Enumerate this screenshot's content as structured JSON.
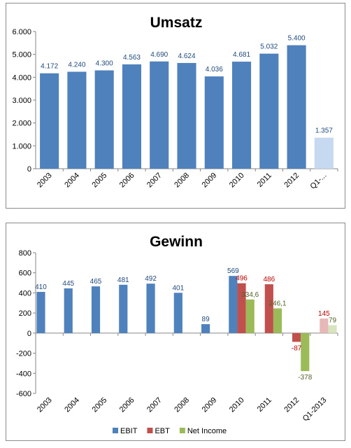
{
  "chart_data": [
    {
      "type": "bar",
      "title": "Umsatz",
      "categories": [
        "2003",
        "2004",
        "2005",
        "2006",
        "2007",
        "2008",
        "2009",
        "2010",
        "2011",
        "2012",
        "Q1-..."
      ],
      "values": [
        4172,
        4240,
        4300,
        4563,
        4690,
        4624,
        4036,
        4681,
        5032,
        5400,
        1357
      ],
      "value_labels": [
        "4.172",
        "4.240",
        "4.300",
        "4.563",
        "4.690",
        "4.624",
        "4.036",
        "4.681",
        "5.032",
        "5.400",
        "1.357"
      ],
      "ylim": [
        0,
        6000
      ],
      "yticks": [
        0,
        1000,
        2000,
        3000,
        4000,
        5000,
        6000
      ],
      "ytick_labels": [
        "0",
        "1.000",
        "2.000",
        "3.000",
        "4.000",
        "5.000",
        "6.000"
      ],
      "bar_color": "#4F81BD",
      "highlight_color": "#C6D9F1",
      "highlight_index": 10,
      "gridlines": false
    },
    {
      "type": "bar",
      "title": "Gewinn",
      "categories": [
        "2003",
        "2004",
        "2005",
        "2006",
        "2007",
        "2008",
        "2009",
        "2010",
        "2011",
        "2012",
        "Q1-2013"
      ],
      "ylim": [
        -600,
        800
      ],
      "yticks": [
        -600,
        -400,
        -200,
        0,
        200,
        400,
        600,
        800
      ],
      "ytick_labels": [
        "-600",
        "-400",
        "-200",
        "0",
        "200",
        "400",
        "600",
        "800"
      ],
      "series": [
        {
          "name": "EBIT",
          "color": "#4F81BD",
          "light_color": "#4F81BD",
          "values": [
            410,
            445,
            465,
            481,
            492,
            401,
            89,
            569,
            null,
            null,
            null
          ],
          "value_labels": [
            "410",
            "445",
            "465",
            "481",
            "492",
            "401",
            "89",
            "569",
            "",
            "",
            ""
          ]
        },
        {
          "name": "EBT",
          "color": "#C0504D",
          "light_color": "#E6B9B8",
          "values": [
            null,
            null,
            null,
            null,
            null,
            null,
            null,
            496,
            486,
            -87,
            145
          ],
          "value_labels": [
            "",
            "",
            "",
            "",
            "",
            "",
            "",
            "496",
            "486",
            "-87",
            "145"
          ]
        },
        {
          "name": "Net Income",
          "color": "#9BBB59",
          "light_color": "#D7E4BD",
          "values": [
            null,
            null,
            null,
            null,
            null,
            null,
            null,
            334.6,
            246.1,
            -378,
            79
          ],
          "value_labels": [
            "",
            "",
            "",
            "",
            "",
            "",
            "",
            "334,6",
            "246,1",
            "-378",
            "79"
          ]
        }
      ],
      "light_index": 10,
      "legend_position": "bottom",
      "label_colors": {
        "EBIT": "#1F497D",
        "EBT": "#C00000",
        "Net Income": "#4F6228"
      },
      "gridlines": false
    }
  ]
}
